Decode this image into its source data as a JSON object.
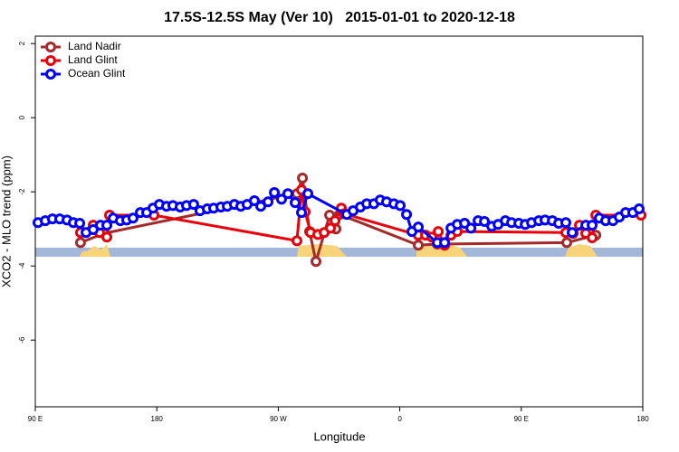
{
  "chart_data": {
    "type": "line",
    "title": "17.5S-12.5S May (Ver 10)   2015-01-01 to 2020-12-18",
    "x_label": "Longitude",
    "y_label": "XCO2 - MLO trend (ppm)",
    "xlim": [
      90,
      540
    ],
    "ylim": [
      -7.8,
      2.2
    ],
    "xticks": [
      {
        "value": 90,
        "label": "90 E"
      },
      180,
      {
        "value": 270,
        "label": "90 W"
      },
      {
        "value": 360,
        "label": "0"
      },
      {
        "value": 450,
        "label": "90 E"
      },
      {
        "value": 540,
        "label": "180"
      }
    ],
    "yticks": [
      2,
      0,
      -2,
      -4,
      -6
    ],
    "legend": "top-left",
    "series": [
      {
        "name": "Land Nadir",
        "color": "#a52a2a",
        "x": [
          123.5,
          141.0,
          283.8,
          287.9,
          293.2,
          297.9,
          308.0,
          312.7,
          315.4,
          373.7,
          387.8,
          483.7,
          505.2
        ],
        "values": [
          -3.37,
          -3.12,
          -2.05,
          -1.63,
          -3.07,
          -3.88,
          -2.63,
          -3.0,
          -2.61,
          -3.44,
          -3.41,
          -3.37,
          -3.17
        ]
      },
      {
        "name": "Land Glint",
        "color": "#e8000b",
        "x": [
          123.5,
          132.9,
          137.6,
          143.0,
          145.0,
          177.9,
          283.8,
          287.2,
          289.9,
          293.9,
          299.3,
          304.0,
          308.7,
          312.0,
          316.7,
          318.7,
          373.7,
          379.1,
          383.8,
          388.5,
          393.2,
          397.9,
          402.6,
          483.0,
          488.4,
          493.1,
          497.8,
          502.5,
          505.2,
          538.7
        ],
        "values": [
          -3.1,
          -2.9,
          -3.1,
          -3.22,
          -2.63,
          -2.63,
          -3.32,
          -1.95,
          -2.54,
          -3.1,
          -3.15,
          -3.1,
          -2.98,
          -2.78,
          -2.44,
          -2.59,
          -3.17,
          -3.17,
          -3.22,
          -3.07,
          -3.44,
          -3.17,
          -3.07,
          -3.1,
          -3.12,
          -2.9,
          -3.12,
          -3.24,
          -2.63,
          -2.63
        ]
      },
      {
        "name": "Ocean Glint",
        "color": "#0000ff",
        "x": [
          92.0,
          97.4,
          102.7,
          108.1,
          113.5,
          118.2,
          122.9,
          127.6,
          132.9,
          138.3,
          143.0,
          147.7,
          153.0,
          157.7,
          162.4,
          167.8,
          172.5,
          177.2,
          181.9,
          187.2,
          191.9,
          197.3,
          202.0,
          207.3,
          212.0,
          217.4,
          222.1,
          227.5,
          232.2,
          237.5,
          242.2,
          246.9,
          252.3,
          257.0,
          262.4,
          267.1,
          272.4,
          277.1,
          282.5,
          287.2,
          291.9,
          320.7,
          325.4,
          330.8,
          335.5,
          340.8,
          345.5,
          350.2,
          355.6,
          360.3,
          365.0,
          369.0,
          373.7,
          387.8,
          393.2,
          397.9,
          402.6,
          408.0,
          412.7,
          418.0,
          422.7,
          428.1,
          432.8,
          438.2,
          442.8,
          448.2,
          452.9,
          457.6,
          463.0,
          467.6,
          473.0,
          477.7,
          483.0,
          487.7,
          497.8,
          502.5,
          507.8,
          512.5,
          517.9,
          522.6,
          527.3,
          532.6,
          537.3
        ],
        "values": [
          -2.83,
          -2.78,
          -2.73,
          -2.73,
          -2.76,
          -2.83,
          -2.85,
          -3.1,
          -3.02,
          -2.9,
          -2.9,
          -2.71,
          -2.78,
          -2.76,
          -2.71,
          -2.56,
          -2.56,
          -2.44,
          -2.34,
          -2.39,
          -2.37,
          -2.41,
          -2.37,
          -2.34,
          -2.51,
          -2.46,
          -2.44,
          -2.41,
          -2.39,
          -2.34,
          -2.39,
          -2.34,
          -2.24,
          -2.39,
          -2.27,
          -2.02,
          -2.2,
          -2.05,
          -2.29,
          -2.56,
          -2.05,
          -2.61,
          -2.51,
          -2.41,
          -2.32,
          -2.32,
          -2.22,
          -2.27,
          -2.32,
          -2.37,
          -2.61,
          -3.07,
          -2.95,
          -3.37,
          -3.37,
          -2.98,
          -2.88,
          -2.85,
          -2.98,
          -2.78,
          -2.8,
          -2.93,
          -2.88,
          -2.78,
          -2.83,
          -2.85,
          -2.88,
          -2.83,
          -2.78,
          -2.76,
          -2.78,
          -2.85,
          -2.83,
          -3.1,
          -2.9,
          -2.9,
          -2.71,
          -2.78,
          -2.78,
          -2.68,
          -2.56,
          -2.56,
          -2.46
        ]
      }
    ]
  }
}
